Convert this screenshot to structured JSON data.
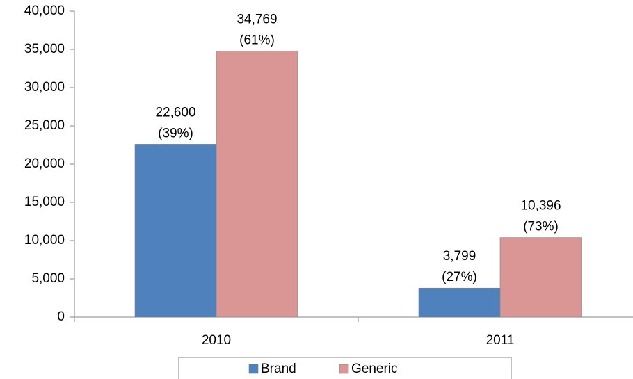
{
  "chart_data": {
    "type": "bar",
    "categories": [
      "2010",
      "2011"
    ],
    "series": [
      {
        "name": "Brand",
        "color": "#4f81bd",
        "values": [
          22600,
          3799
        ],
        "value_labels": [
          "22,600",
          "3,799"
        ],
        "share_labels": [
          "(39%)",
          "(27%)"
        ]
      },
      {
        "name": "Generic",
        "color": "#d99694",
        "values": [
          34769,
          10396
        ],
        "value_labels": [
          "34,769",
          "10,396"
        ],
        "share_labels": [
          "(61%)",
          "(73%)"
        ]
      }
    ],
    "ylim": [
      0,
      40000
    ],
    "yticks": [
      0,
      {
        "value": 5000,
        "label": "5,000"
      },
      {
        "value": 10000,
        "label": "10,000"
      },
      {
        "value": 15000,
        "label": "15,000"
      },
      {
        "value": 20000,
        "label": "20,000"
      },
      {
        "value": 25000,
        "label": "25,000"
      },
      {
        "value": 30000,
        "label": "30,000"
      },
      {
        "value": 35000,
        "label": "35,000"
      },
      {
        "value": 40000,
        "label": "40,000"
      }
    ],
    "grid": false,
    "legend": "bottom"
  }
}
